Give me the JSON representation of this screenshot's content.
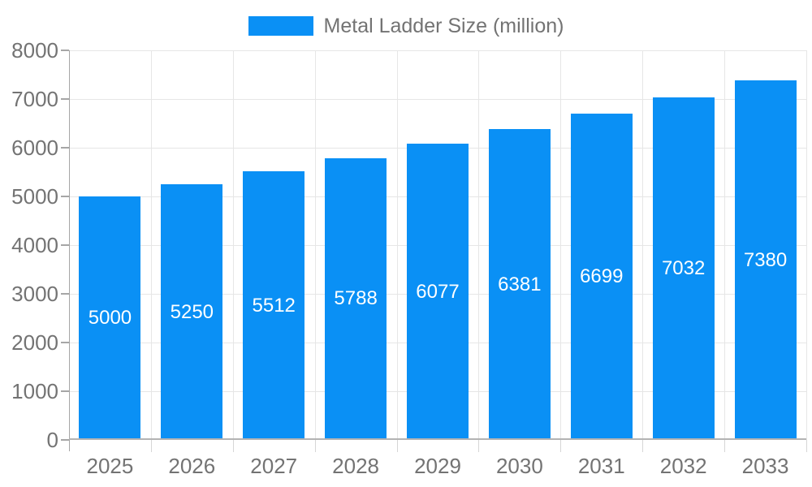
{
  "legend": {
    "label": "Metal Ladder Size (million)"
  },
  "chart_data": {
    "type": "bar",
    "title": "",
    "categories": [
      "2025",
      "2026",
      "2027",
      "2028",
      "2029",
      "2030",
      "2031",
      "2032",
      "2033"
    ],
    "series": [
      {
        "name": "Metal Ladder Size (million)",
        "values": [
          5000,
          5250,
          5512,
          5788,
          6077,
          6381,
          6699,
          7032,
          7380
        ]
      }
    ],
    "xlabel": "",
    "ylabel": "",
    "ylim": [
      0,
      8000
    ],
    "yticks": [
      0,
      1000,
      2000,
      3000,
      4000,
      5000,
      6000,
      7000,
      8000
    ],
    "grid": true,
    "legend_position": "top",
    "bar_labels_inside": true
  },
  "colors": {
    "bar": "#0a90f5",
    "axis_text": "#737373",
    "grid_line": "#e6e6e6",
    "axis_line": "#a6a6a6",
    "baseline": "#b3b3b3",
    "minor_tick": "#d6d6d6",
    "bar_label_text": "#ffffff"
  }
}
